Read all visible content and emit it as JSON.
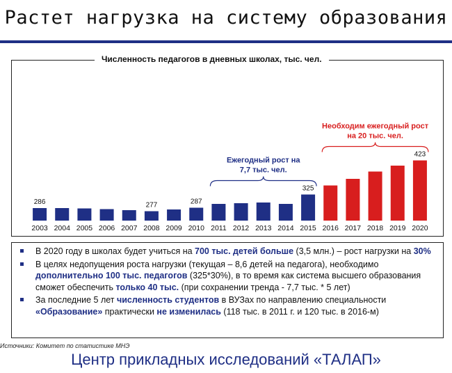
{
  "slide": {
    "title": "Растет нагрузка на систему образования",
    "source": "Источники: Комитет по статистике МНЭ",
    "footer": "Центр прикладных исследований «ТАЛАП»"
  },
  "colors": {
    "blue": "#1f2f85",
    "red": "#d81e1e",
    "text": "#111111"
  },
  "chart_data": {
    "type": "bar",
    "title": "Численность педагогов в дневных школах, тыс. чел.",
    "categories": [
      "2003",
      "2004",
      "2005",
      "2006",
      "2007",
      "2008",
      "2009",
      "2010",
      "2011",
      "2012",
      "2013",
      "2014",
      "2015",
      "2016",
      "2017",
      "2018",
      "2019",
      "2020"
    ],
    "values": [
      286,
      286,
      285,
      283,
      280,
      277,
      282,
      287,
      298,
      300,
      302,
      298,
      325,
      351,
      370,
      391,
      408,
      423
    ],
    "labeled_values": [
      {
        "category": "2003",
        "label": "286"
      },
      {
        "category": "2008",
        "label": "277"
      },
      {
        "category": "2010",
        "label": "287"
      },
      {
        "category": "2015",
        "label": "325"
      },
      {
        "category": "2020",
        "label": "423"
      }
    ],
    "series_colors": {
      "actual": "#1f2f85",
      "forecast": "#d81e1e"
    },
    "forecast_from": "2016",
    "ylim": [
      250,
      430
    ],
    "annotations": [
      {
        "text_lines": [
          "Ежегодный рост на",
          "7,7 тыс. чел."
        ],
        "from": "2011",
        "to": "2015",
        "color": "#1f2f85"
      },
      {
        "text_lines": [
          "Необходим ежегодный рост",
          "на 20 тыс. чел."
        ],
        "from": "2016",
        "to": "2020",
        "color": "#d81e1e"
      }
    ]
  },
  "bullets": [
    {
      "segments": [
        {
          "text": "В 2020 году в школах будет учиться на ",
          "bold": false
        },
        {
          "text": "700 тыс. детей больше",
          "bold": true
        },
        {
          "text": " (3,5 млн.) – рост нагрузки на ",
          "bold": false
        },
        {
          "text": "30%",
          "bold": true
        }
      ]
    },
    {
      "segments": [
        {
          "text": "В целях недопущения роста нагрузки (текущая – 8,6 детей на педагога), необходимо ",
          "bold": false
        },
        {
          "text": "дополнительно 100 тыс. педагогов",
          "bold": true
        },
        {
          "text": " (325*30%), в то время как система высшего образования сможет обеспечить ",
          "bold": false
        },
        {
          "text": "только 40 тыс.",
          "bold": true
        },
        {
          "text": " (при сохранении тренда - 7,7 тыс. * 5 лет)",
          "bold": false
        }
      ]
    },
    {
      "segments": [
        {
          "text": "За последние 5 лет ",
          "bold": false
        },
        {
          "text": "численность студентов",
          "bold": true
        },
        {
          "text": " в ВУЗах по направлению специальности ",
          "bold": false
        },
        {
          "text": "«Образование»",
          "bold": true
        },
        {
          "text": " практически ",
          "bold": false
        },
        {
          "text": "не изменилась",
          "bold": true
        },
        {
          "text": " (118 тыс. в 2011 г. и 120 тыс. в 2016-м)",
          "bold": false
        }
      ]
    }
  ]
}
